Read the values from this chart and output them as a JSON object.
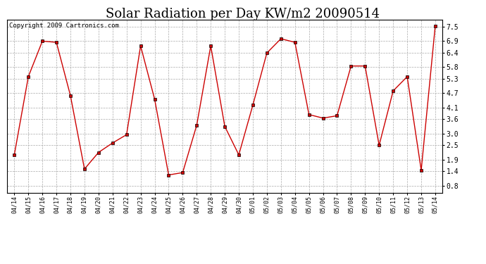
{
  "title": "Solar Radiation per Day KW/m2 20090514",
  "copyright": "Copyright 2009 Cartronics.com",
  "dates": [
    "04/14",
    "04/15",
    "04/16",
    "04/17",
    "04/18",
    "04/19",
    "04/20",
    "04/21",
    "04/22",
    "04/23",
    "04/24",
    "04/25",
    "04/26",
    "04/27",
    "04/28",
    "04/29",
    "04/30",
    "05/01",
    "05/02",
    "05/03",
    "05/04",
    "05/05",
    "05/06",
    "05/07",
    "05/08",
    "05/09",
    "05/10",
    "05/11",
    "05/12",
    "05/13",
    "05/14"
  ],
  "values": [
    2.1,
    5.4,
    6.9,
    6.85,
    4.6,
    1.5,
    2.2,
    2.6,
    2.95,
    6.7,
    4.45,
    1.25,
    1.35,
    3.35,
    6.7,
    3.3,
    2.1,
    4.2,
    6.4,
    7.0,
    6.85,
    3.8,
    3.65,
    3.75,
    5.85,
    5.85,
    2.5,
    4.8,
    5.4,
    1.45,
    7.55
  ],
  "line_color": "#cc0000",
  "marker": "s",
  "marker_size": 2.5,
  "bg_color": "#ffffff",
  "grid_color": "#aaaaaa",
  "ylim": [
    0.5,
    7.8
  ],
  "yticks": [
    0.8,
    1.4,
    1.9,
    2.5,
    3.0,
    3.6,
    4.1,
    4.7,
    5.3,
    5.8,
    6.4,
    6.9,
    7.5
  ],
  "title_fontsize": 13,
  "copyright_fontsize": 6.5
}
